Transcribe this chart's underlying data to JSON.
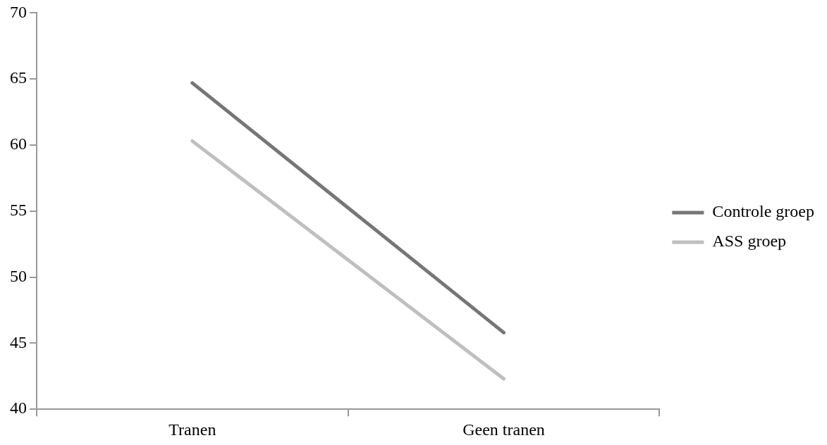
{
  "chart_data": {
    "type": "line",
    "categories": [
      "Tranen",
      "Geen tranen"
    ],
    "series": [
      {
        "name": "Controle groep",
        "color": "#767676",
        "values": [
          64.7,
          45.8
        ]
      },
      {
        "name": "ASS groep",
        "color": "#bfbfbf",
        "values": [
          60.3,
          42.3
        ]
      }
    ],
    "ylim": [
      40,
      70
    ],
    "yticks": [
      40,
      45,
      50,
      55,
      60,
      65,
      70
    ],
    "grid": false,
    "legend": "right",
    "marker": "none",
    "line_style": "solid"
  }
}
